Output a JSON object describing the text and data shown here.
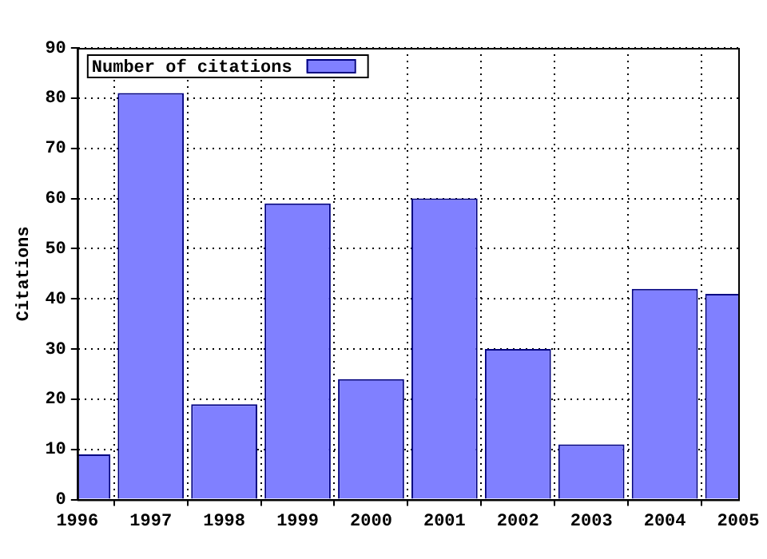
{
  "chart_data": {
    "type": "bar",
    "ylabel": "Citations",
    "x": [
      1996,
      1997,
      1998,
      1999,
      2000,
      2001,
      2002,
      2003,
      2004,
      2005
    ],
    "series": [
      {
        "name": "Number of citations",
        "color": "#8080ff",
        "values": [
          9,
          81,
          19,
          59,
          24,
          60,
          30,
          11,
          42,
          41
        ]
      }
    ],
    "xlim": [
      1996,
      2005
    ],
    "xticks": [
      1996,
      1997,
      1998,
      1999,
      2000,
      2001,
      2002,
      2003,
      2004,
      2005
    ],
    "ylim": [
      0,
      90
    ],
    "yticks": [
      0,
      10,
      20,
      30,
      40,
      50,
      60,
      70,
      80,
      90
    ],
    "grid": true,
    "legend": "top left"
  }
}
